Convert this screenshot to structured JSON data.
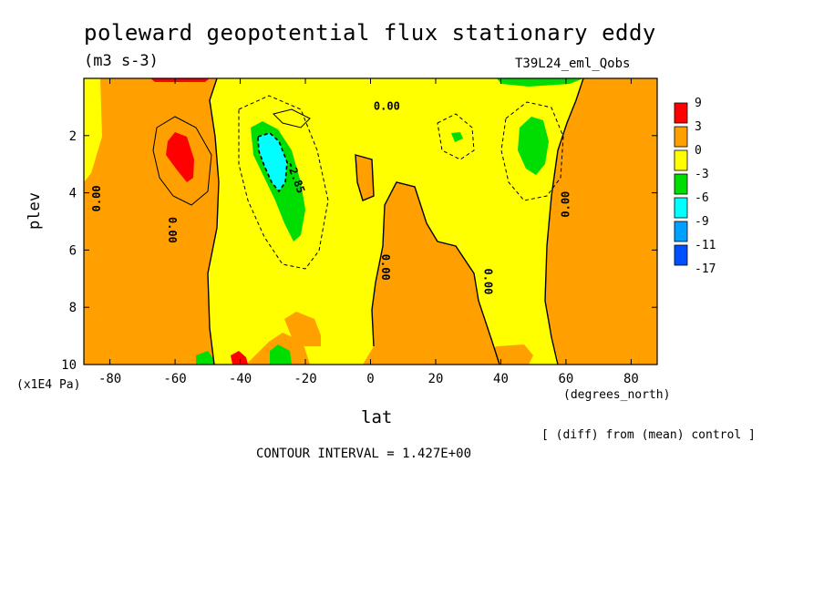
{
  "chart_data": {
    "type": "heatmap",
    "title": "poleward geopotential flux stationary eddy",
    "units": "(m3 s-3)",
    "run_label": "T39L24_eml_Qobs",
    "xlabel": "lat",
    "x_units": "(degrees_north)",
    "ylabel": "plev",
    "y_units": "(x1E4 Pa)",
    "xlim": [
      -88,
      88
    ],
    "ylim": [
      10,
      0
    ],
    "x_ticks": [
      -80,
      -60,
      -40,
      -20,
      0,
      20,
      40,
      60,
      80
    ],
    "x_tick_labels": [
      "-80",
      "-60",
      "-40",
      "-20",
      "0",
      "20",
      "40",
      "60",
      "80"
    ],
    "y_ticks": [
      2,
      4,
      6,
      8,
      10
    ],
    "y_tick_labels": [
      "2",
      "4",
      "6",
      "8",
      "10"
    ],
    "legend": {
      "labels": [
        "9",
        "3",
        "0",
        "-3",
        "-6",
        "-9",
        "-11",
        "-17"
      ],
      "colors": [
        "#ff0000",
        "#ffa000",
        "#ffff00",
        "#00dd00",
        "#00ffff",
        "#00a0ff",
        "#0050ff"
      ]
    },
    "contour_labels": [
      "0.00",
      "0.00",
      "0.00",
      "0.00",
      "0.00",
      "0.00",
      "-2.85"
    ],
    "footnote": "[ (diff) from (mean) control ]",
    "contour_interval": "CONTOUR INTERVAL = 1.427E+00"
  }
}
